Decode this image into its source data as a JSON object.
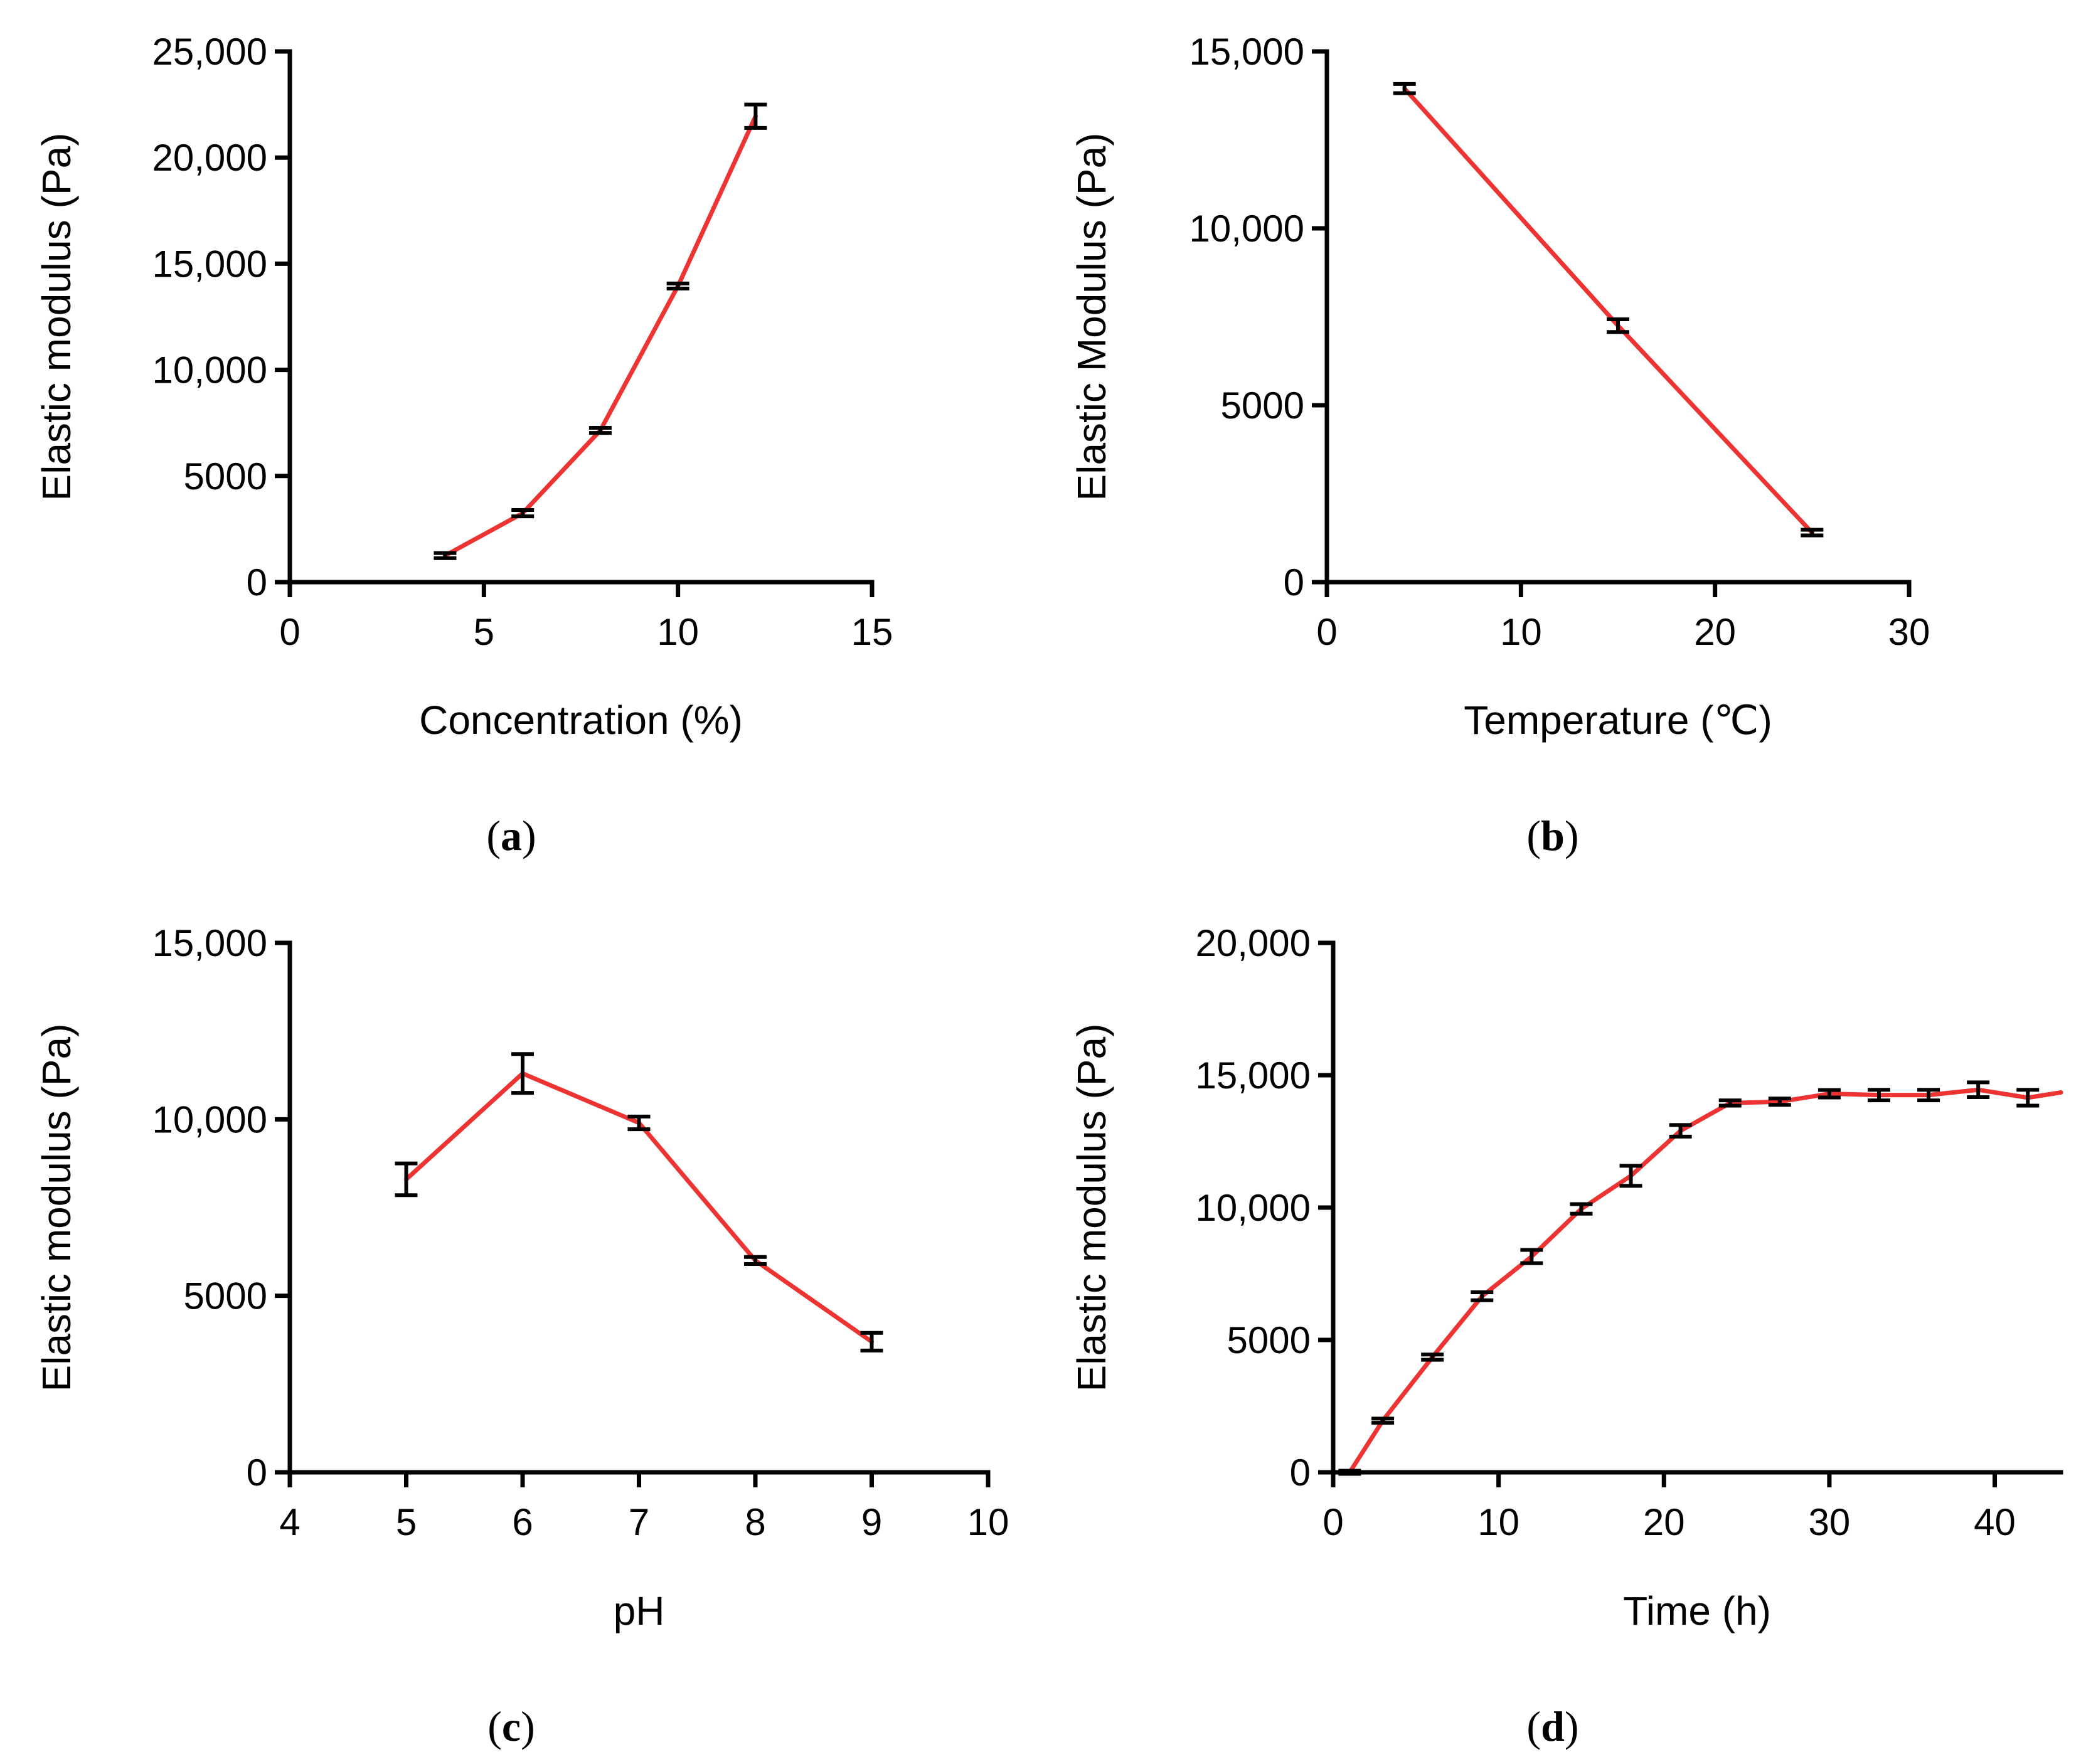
{
  "colors": {
    "series": "#ee3333",
    "axis": "#000000"
  },
  "chart_data": [
    {
      "id": "a",
      "type": "line",
      "caption": {
        "open": "(",
        "letter": "a",
        "close": ")"
      },
      "xlabel": "Concentration (%)",
      "ylabel": "Elastic modulus (Pa)",
      "xlim": [
        0,
        15
      ],
      "ylim": [
        0,
        25000
      ],
      "xticks": [
        0,
        5,
        10,
        15
      ],
      "xtick_labels": [
        "0",
        "5",
        "10",
        "15"
      ],
      "yticks": [
        0,
        5000,
        10000,
        15000,
        20000,
        25000
      ],
      "ytick_labels": [
        "0",
        "5000",
        "10,000",
        "15,000",
        "20,000",
        "25,000"
      ],
      "series": [
        {
          "name": "Elastic modulus",
          "x": [
            4,
            6,
            8,
            10,
            12
          ],
          "y": [
            1250,
            3250,
            7150,
            13950,
            21950
          ],
          "err": [
            120,
            150,
            120,
            120,
            550
          ]
        }
      ]
    },
    {
      "id": "b",
      "type": "line",
      "caption": {
        "open": "(",
        "letter": "b",
        "close": ")"
      },
      "xlabel": "Temperature (℃)",
      "ylabel": "Elastic Modulus (Pa)",
      "xlim": [
        0,
        30
      ],
      "ylim": [
        0,
        15000
      ],
      "xticks": [
        0,
        10,
        20,
        30
      ],
      "xtick_labels": [
        "0",
        "10",
        "20",
        "30"
      ],
      "yticks": [
        0,
        5000,
        10000,
        15000
      ],
      "ytick_labels": [
        "0",
        "5000",
        "10,000",
        "15,000"
      ],
      "series": [
        {
          "name": "Elastic Modulus",
          "x": [
            4,
            15,
            25
          ],
          "y": [
            13950,
            7250,
            1400
          ],
          "err": [
            130,
            180,
            80
          ]
        }
      ]
    },
    {
      "id": "c",
      "type": "line",
      "caption": {
        "open": "(",
        "letter": "c",
        "close": ")"
      },
      "xlabel": "pH",
      "ylabel": "Elastic modulus (Pa)",
      "xlim": [
        4,
        10
      ],
      "ylim": [
        0,
        15000
      ],
      "xticks": [
        4,
        5,
        6,
        7,
        8,
        9,
        10
      ],
      "xtick_labels": [
        "4",
        "5",
        "6",
        "7",
        "8",
        "9",
        "10"
      ],
      "yticks": [
        0,
        5000,
        10000,
        15000
      ],
      "ytick_labels": [
        "0",
        "5000",
        "10,000",
        "15,000"
      ],
      "series": [
        {
          "name": "Elastic modulus",
          "x": [
            5,
            6,
            7,
            8,
            9
          ],
          "y": [
            8300,
            11300,
            9900,
            6000,
            3700
          ],
          "err": [
            450,
            550,
            180,
            100,
            250
          ]
        }
      ]
    },
    {
      "id": "d",
      "type": "line",
      "caption": {
        "open": "(",
        "letter": "d",
        "close": ")"
      },
      "xlabel": "Time (h)",
      "ylabel": "Elastic modulus (Pa)",
      "xlim": [
        0,
        44
      ],
      "ylim": [
        0,
        20000
      ],
      "xticks": [
        0,
        10,
        20,
        30,
        40
      ],
      "xtick_labels": [
        "0",
        "10",
        "20",
        "30",
        "40"
      ],
      "yticks": [
        0,
        5000,
        10000,
        15000,
        20000
      ],
      "ytick_labels": [
        "0",
        "5000",
        "10,000",
        "15,000",
        "20,000"
      ],
      "series": [
        {
          "name": "Elastic modulus",
          "x": [
            1,
            3,
            6,
            9,
            12,
            15,
            18,
            21,
            24,
            27,
            30,
            33,
            36,
            39,
            42,
            44
          ],
          "y": [
            0,
            1950,
            4350,
            6650,
            8150,
            9950,
            11200,
            12900,
            13950,
            14000,
            14300,
            14250,
            14250,
            14450,
            14150,
            14350
          ],
          "err": [
            60,
            80,
            100,
            150,
            250,
            180,
            380,
            220,
            100,
            120,
            140,
            200,
            200,
            280,
            300,
            null
          ]
        }
      ]
    }
  ]
}
